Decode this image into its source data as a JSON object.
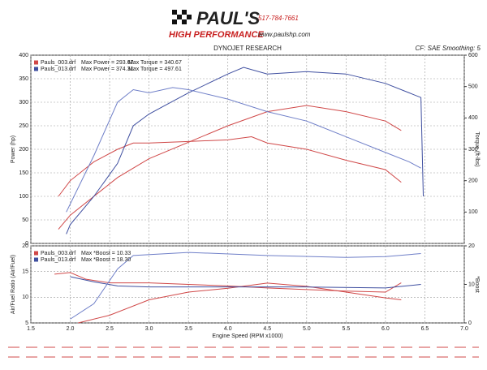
{
  "header": {
    "brand": "PAUL'S",
    "tagline": "HIGH PERFORMANCE",
    "phone": "517-784-7661",
    "url": "www.paulshp.com"
  },
  "chart_data": [
    {
      "type": "line",
      "title": "DYNOJET RESEARCH",
      "subtitle": "CF: SAE  Smoothing: 5",
      "ylabel": "Power (hp)",
      "y2label": "Torque (ft-lbs)",
      "xlim": [
        1.5,
        7
      ],
      "xticks": [
        1.5,
        2,
        2.5,
        3,
        3.5,
        4,
        4.5,
        5,
        5.5,
        6,
        6.5,
        7
      ],
      "ylim": [
        0,
        400
      ],
      "yticks": [
        0,
        50,
        100,
        150,
        200,
        250,
        300,
        350,
        400
      ],
      "y2lim": [
        0,
        600
      ],
      "y2ticks": [
        100,
        200,
        300,
        400,
        500,
        600
      ],
      "grid": true,
      "legend": [
        {
          "series": 0,
          "notes": [
            "Max Power = 293.67",
            "Max Torque = 340.67"
          ]
        },
        {
          "series": 2,
          "notes": [
            "Max Power = 374.31",
            "Max Torque = 497.61"
          ]
        }
      ],
      "series": [
        {
          "name": "Pauls_003.drf",
          "color": "#d04848",
          "x": [
            1.85,
            2,
            2.3,
            2.6,
            3,
            3.5,
            4,
            4.5,
            5,
            5.5,
            6,
            6.2
          ],
          "values": [
            30,
            60,
            100,
            140,
            180,
            215,
            250,
            280,
            293,
            280,
            260,
            240
          ]
        },
        {
          "name": "Pauls_003.drf",
          "color": "#d04848",
          "axis": "y2",
          "x": [
            1.85,
            2,
            2.3,
            2.6,
            2.8,
            3,
            3.5,
            4,
            4.3,
            4.5,
            5,
            5.5,
            6,
            6.2
          ],
          "values": [
            150,
            200,
            260,
            300,
            320,
            320,
            325,
            330,
            340,
            320,
            300,
            265,
            235,
            195
          ]
        },
        {
          "name": "Pauls_013.drf",
          "color": "#3f4fa0",
          "x": [
            1.95,
            2,
            2.3,
            2.6,
            2.8,
            3,
            3.5,
            4,
            4.2,
            4.5,
            5,
            5.5,
            6,
            6.3,
            6.45,
            6.48
          ],
          "values": [
            20,
            40,
            100,
            170,
            250,
            275,
            320,
            360,
            374,
            360,
            365,
            360,
            340,
            320,
            310,
            100
          ]
        },
        {
          "name": "Pauls_013.drf",
          "color": "#6f7fc8",
          "axis": "y2",
          "x": [
            1.95,
            2.3,
            2.6,
            2.8,
            3,
            3.3,
            3.5,
            4,
            4.5,
            5,
            5.5,
            6,
            6.3,
            6.45
          ],
          "values": [
            100,
            280,
            450,
            490,
            480,
            497,
            490,
            460,
            420,
            390,
            340,
            290,
            260,
            240
          ]
        }
      ]
    },
    {
      "type": "line",
      "xlabel": "Engine Speed (RPM x1000)",
      "ylabel": "Air/Fuel Ratio (Air/Fuel)",
      "y2label": "*Boost",
      "xlim": [
        1.5,
        7
      ],
      "xticks": [
        {
          "value": 1.5,
          "label": "1.5"
        },
        {
          "value": 2,
          "label": "2.0"
        },
        {
          "value": 2.5,
          "label": "2.5"
        },
        {
          "value": 3,
          "label": "3.0"
        },
        {
          "value": 3.5,
          "label": "3.5"
        },
        {
          "value": 4,
          "label": "4.0"
        },
        {
          "value": 4.5,
          "label": "4.5"
        },
        {
          "value": 5,
          "label": "5.0"
        },
        {
          "value": 5.5,
          "label": "5.5"
        },
        {
          "value": 6,
          "label": "6.0"
        },
        {
          "value": 6.5,
          "label": "6.5"
        },
        {
          "value": 7,
          "label": "7.0"
        }
      ],
      "ylim": [
        5,
        20
      ],
      "yticks": [
        5,
        10,
        15,
        20
      ],
      "y2lim": [
        0,
        20
      ],
      "y2ticks": [
        0,
        10,
        20
      ],
      "grid": true,
      "legend": [
        {
          "series": 0,
          "notes": [
            "Max *Boost = 10.33"
          ]
        },
        {
          "series": 2,
          "notes": [
            "Max *Boost = 18.30"
          ]
        }
      ],
      "series": [
        {
          "name": "Pauls_003.drf",
          "color": "#d04848",
          "x": [
            1.8,
            2,
            2.2,
            2.5,
            3,
            3.5,
            4,
            4.5,
            5,
            5.5,
            6,
            6.2
          ],
          "values": [
            14.5,
            14.8,
            13.5,
            12.8,
            12.8,
            12.5,
            12.2,
            11.8,
            11.5,
            11.2,
            11,
            12.8
          ]
        },
        {
          "name": "Pauls_003.drf",
          "color": "#d04848",
          "axis": "y2",
          "x": [
            2.1,
            2.5,
            3,
            3.5,
            4,
            4.5,
            5,
            5.5,
            6,
            6.2
          ],
          "values": [
            0,
            2,
            6,
            8,
            9,
            10.33,
            9.5,
            8,
            6.5,
            6
          ]
        },
        {
          "name": "Pauls_013.drf",
          "color": "#3f4fa0",
          "x": [
            2,
            2.3,
            2.6,
            3,
            4,
            5,
            6,
            6.45
          ],
          "values": [
            14,
            13,
            12.2,
            12,
            12,
            12,
            11.8,
            12.5
          ]
        },
        {
          "name": "Pauls_013.drf",
          "color": "#6f7fc8",
          "axis": "y2",
          "x": [
            2,
            2.3,
            2.6,
            2.8,
            3.5,
            4.5,
            5.5,
            6,
            6.45
          ],
          "values": [
            1,
            5,
            14,
            17.5,
            18.3,
            17.5,
            17,
            17.2,
            18
          ]
        }
      ]
    }
  ]
}
